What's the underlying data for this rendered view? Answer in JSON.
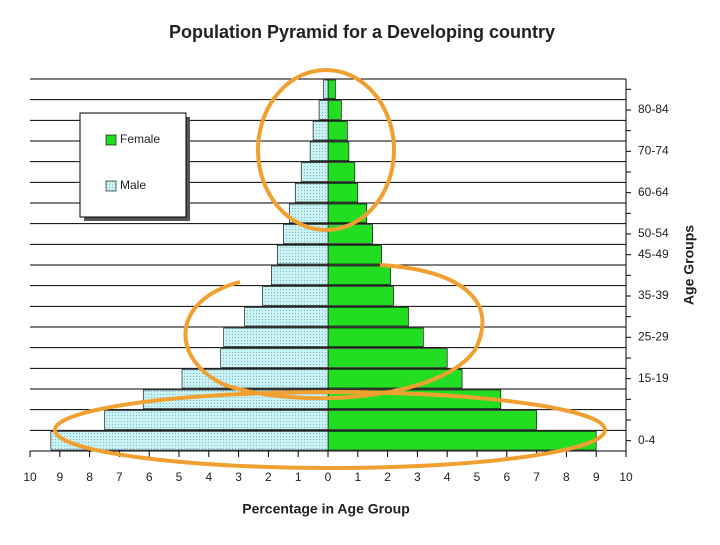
{
  "chart_data": {
    "type": "pyramid",
    "title": "Population Pyramid for a Developing country",
    "x_label": "Percentage in Age Group",
    "y_label": "Age Groups",
    "categories": [
      "0-4",
      null,
      null,
      "15-19",
      null,
      "25-29",
      null,
      "35-39",
      null,
      "45-49",
      "50-54",
      null,
      "60-64",
      null,
      "70-74",
      null,
      "80-84",
      null
    ],
    "series": [
      {
        "name": "Female",
        "color": "#22dd22",
        "side": "right",
        "values": [
          9.0,
          7.0,
          5.8,
          4.5,
          4.0,
          3.2,
          2.7,
          2.2,
          2.1,
          1.8,
          1.5,
          1.3,
          1.0,
          0.9,
          0.7,
          0.65,
          0.45,
          0.25
        ]
      },
      {
        "name": "Male",
        "color": "#c8f2f4",
        "side": "left",
        "values": [
          9.3,
          7.5,
          6.2,
          4.9,
          3.6,
          3.5,
          2.8,
          2.2,
          1.9,
          1.7,
          1.5,
          1.3,
          1.1,
          0.9,
          0.6,
          0.5,
          0.3,
          0.15
        ]
      }
    ],
    "xlim": [
      -10,
      10
    ],
    "xticks": [
      {
        "value": -10,
        "label": "10"
      },
      {
        "value": -9,
        "label": "9"
      },
      {
        "value": -8,
        "label": "8"
      },
      {
        "value": -7,
        "label": "7"
      },
      {
        "value": -6,
        "label": "6"
      },
      {
        "value": -5,
        "label": "5"
      },
      {
        "value": -4,
        "label": "4"
      },
      {
        "value": -3,
        "label": "3"
      },
      {
        "value": -2,
        "label": "2"
      },
      {
        "value": -1,
        "label": "1"
      },
      0,
      1,
      2,
      3,
      4,
      5,
      6,
      7,
      8,
      9,
      10
    ]
  }
}
